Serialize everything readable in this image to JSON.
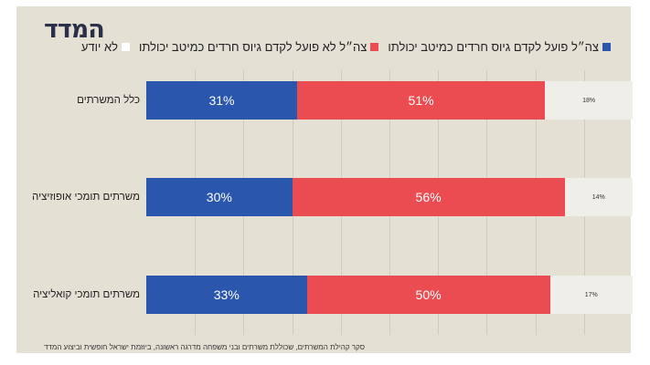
{
  "logo_text": "המדד",
  "source_note": "סקר קהילת המשרתים, שכוללת משרתים ובני משפחה מדרגה ראשונה, ביוזמת ישראל חופשית וביצוע המדד",
  "colors": {
    "blue": "#2a56ad",
    "red": "#ea4c51",
    "gray": "#efeee9",
    "background": "#e4e1d4"
  },
  "chart_data": {
    "type": "bar",
    "orientation": "horizontal",
    "stacked": true,
    "stack_order": "left-to-right",
    "categories": [
      "כלל המשרתים",
      "משרתים תומכי אופוזיציה",
      "משרתים תומכי קואליציה"
    ],
    "series": [
      {
        "name": "צה״ל פועל לקדם גיוס חרדים כמיטב יכולתו",
        "color": "#2a56ad",
        "values": [
          31,
          30,
          33
        ],
        "labels": [
          "31%",
          "30%",
          "33%"
        ]
      },
      {
        "name": "צה״ל לא פועל לקדם גיוס חרדים כמיטב יכולתו",
        "color": "#ea4c51",
        "values": [
          51,
          56,
          50
        ],
        "labels": [
          "51%",
          "56%",
          "50%"
        ]
      },
      {
        "name": "לא יודע",
        "color": "#efeee9",
        "values": [
          18,
          14,
          17
        ],
        "labels": [
          "18%",
          "14%",
          "17%"
        ]
      }
    ],
    "xlim": [
      0,
      100
    ],
    "grid": true,
    "legend_position": "top"
  }
}
